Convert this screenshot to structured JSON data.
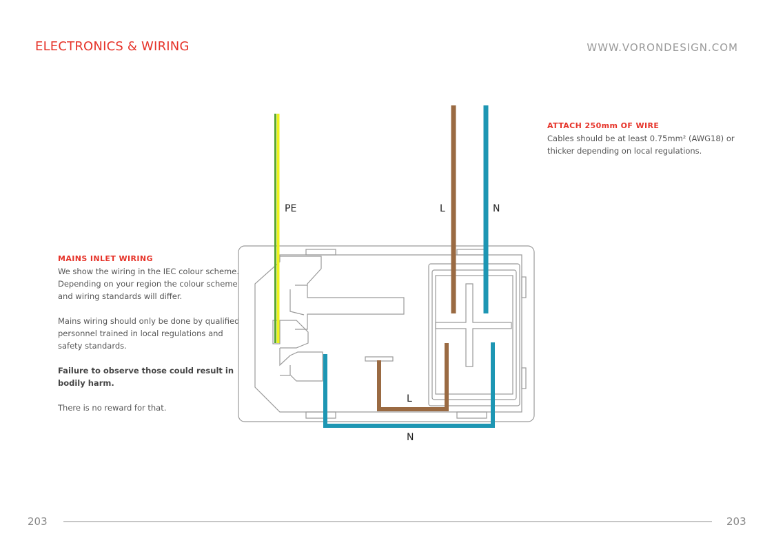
{
  "header": {
    "section_title": "ELECTRONICS & WIRING",
    "website": "WWW.VORONDESIGN.COM"
  },
  "attach_note": {
    "title": "ATTACH 250mm OF WIRE",
    "line1": "Cables should be at least 0.75mm² (AWG18) or",
    "line2": "thicker depending on local regulations."
  },
  "mains_note": {
    "title": "MAINS INLET WIRING",
    "para1": [
      "We show the wiring in the IEC colour scheme.",
      "Depending on your region the colour scheme",
      "and wiring standards will differ."
    ],
    "para2": [
      "Mains wiring should only be done by qualified",
      "personnel trained in local regulations and",
      "safety standards."
    ],
    "warning": [
      "Failure to observe those could result in",
      "bodily harm."
    ],
    "closing": "There is no reward for that."
  },
  "diagram": {
    "labels": {
      "pe": "PE",
      "l_top": "L",
      "n_top": "N",
      "l_bottom": "L",
      "n_bottom": "N"
    },
    "colors": {
      "earth_green": "#5aa832",
      "earth_yellow": "#eef21c",
      "live_brown": "#9a6a42",
      "neutral_blue": "#1d96b3",
      "outline": "#9a9a9a"
    }
  },
  "footer": {
    "page_left": "203",
    "page_right": "203"
  }
}
